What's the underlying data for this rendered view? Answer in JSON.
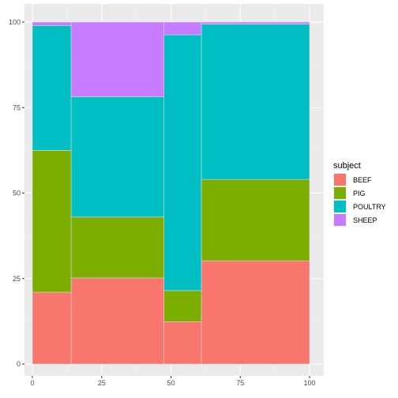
{
  "chart_data": {
    "type": "bar",
    "subtype": "mosaic-stacked-100",
    "x_ticks": [
      0,
      25,
      50,
      75,
      100
    ],
    "y_ticks": [
      0,
      25,
      50,
      75,
      100
    ],
    "xlim": [
      0,
      100
    ],
    "ylim": [
      0,
      100
    ],
    "grid": true,
    "legend": {
      "title": "subject",
      "placement": "right"
    },
    "columns": [
      {
        "x_start": 0,
        "x_end": 14,
        "segments": [
          21,
          41.5,
          36.5,
          1
        ]
      },
      {
        "x_start": 14,
        "x_end": 47.5,
        "segments": [
          25.2,
          17.8,
          35.2,
          21.8
        ]
      },
      {
        "x_start": 47.5,
        "x_end": 61,
        "segments": [
          12.4,
          9.1,
          74.8,
          3.7
        ]
      },
      {
        "x_start": 61,
        "x_end": 100,
        "segments": [
          30.2,
          23.8,
          45.4,
          0.6
        ]
      }
    ],
    "series": [
      {
        "name": "BEEF",
        "color": "#F8766D"
      },
      {
        "name": "PIG",
        "color": "#7CAE00"
      },
      {
        "name": "POULTRY",
        "color": "#00BFC4"
      },
      {
        "name": "SHEEP",
        "color": "#C77CFF"
      }
    ]
  }
}
